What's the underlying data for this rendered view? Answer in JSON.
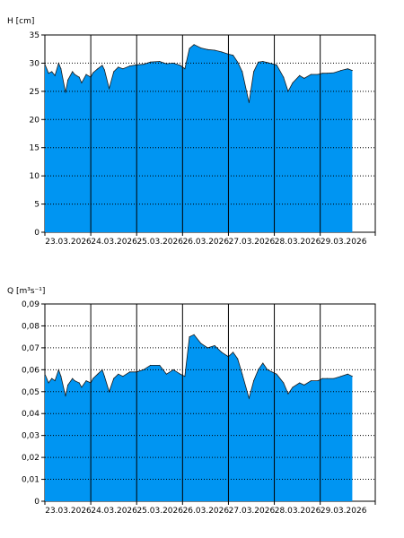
{
  "chart_data": [
    {
      "type": "area",
      "ylabel": "H [cm]",
      "ylim": [
        0,
        35
      ],
      "yticks": [
        "0",
        "5",
        "10",
        "15",
        "20",
        "25",
        "30",
        "35"
      ],
      "x_tick_labels": [
        "23.03.2026",
        "24.03.2026",
        "25.03.2026",
        "26.03.2026",
        "27.03.2026",
        "28.03.2026",
        "29.03.2026"
      ],
      "x_range_days": [
        0,
        7.2
      ],
      "fill_color": "#0095f2",
      "grid": "dotted horizontal at each tick, solid vertical at each day",
      "series": [
        {
          "x_days": [
            0,
            0.08,
            0.15,
            0.22,
            0.3,
            0.35,
            0.45,
            0.5,
            0.6,
            0.65,
            0.75,
            0.8,
            0.9,
            1.0,
            1.05,
            1.15,
            1.25,
            1.3,
            1.4,
            1.5,
            1.6,
            1.7,
            1.85,
            2.0,
            2.15,
            2.3,
            2.5,
            2.65,
            2.8,
            2.95,
            3.05,
            3.15,
            3.25,
            3.4,
            3.55,
            3.7,
            3.85,
            4.0,
            4.1,
            4.2,
            4.3,
            4.45,
            4.55,
            4.65,
            4.75,
            4.85,
            4.95,
            5.05,
            5.2,
            5.3,
            5.4,
            5.55,
            5.65,
            5.8,
            5.95,
            6.05,
            6.15,
            6.3,
            6.45,
            6.6,
            6.7
          ],
          "values": [
            29.8,
            28.2,
            28.5,
            27.8,
            30.0,
            29.0,
            24.8,
            27.0,
            28.5,
            28.0,
            27.5,
            26.5,
            28.0,
            27.5,
            28.3,
            29.0,
            29.6,
            28.8,
            25.5,
            28.5,
            29.3,
            29.0,
            29.5,
            29.7,
            29.8,
            30.2,
            30.3,
            29.9,
            30.0,
            29.6,
            29.0,
            32.6,
            33.3,
            32.7,
            32.4,
            32.3,
            32.0,
            31.6,
            31.4,
            30.2,
            28.5,
            23.0,
            28.5,
            30.2,
            30.3,
            30.1,
            29.9,
            29.7,
            27.5,
            25.0,
            26.5,
            27.8,
            27.3,
            28.0,
            28.0,
            28.2,
            28.2,
            28.3,
            28.7,
            29.0,
            28.7
          ]
        }
      ]
    },
    {
      "type": "area",
      "ylabel": "Q [m³s⁻¹]",
      "ylim": [
        0,
        0.09
      ],
      "yticks": [
        "0",
        "0,01",
        "0,02",
        "0,03",
        "0,04",
        "0,05",
        "0,06",
        "0,07",
        "0,08",
        "0,09"
      ],
      "x_tick_labels": [
        "23.03.2026",
        "24.03.2026",
        "25.03.2026",
        "26.03.2026",
        "27.03.2026",
        "28.03.2026",
        "29.03.2026"
      ],
      "x_range_days": [
        0,
        7.2
      ],
      "fill_color": "#0095f2",
      "grid": "dotted horizontal at each tick, solid vertical at each day",
      "series": [
        {
          "x_days": [
            0,
            0.08,
            0.15,
            0.22,
            0.3,
            0.35,
            0.45,
            0.5,
            0.6,
            0.65,
            0.75,
            0.8,
            0.9,
            1.0,
            1.05,
            1.15,
            1.25,
            1.3,
            1.4,
            1.5,
            1.6,
            1.7,
            1.85,
            2.0,
            2.15,
            2.3,
            2.5,
            2.65,
            2.8,
            2.95,
            3.05,
            3.15,
            3.25,
            3.4,
            3.55,
            3.7,
            3.85,
            4.0,
            4.1,
            4.2,
            4.3,
            4.45,
            4.55,
            4.65,
            4.75,
            4.85,
            4.95,
            5.05,
            5.2,
            5.3,
            5.4,
            5.55,
            5.65,
            5.8,
            5.95,
            6.05,
            6.15,
            6.3,
            6.45,
            6.6,
            6.7
          ],
          "values": [
            0.058,
            0.054,
            0.056,
            0.055,
            0.06,
            0.057,
            0.048,
            0.053,
            0.056,
            0.055,
            0.054,
            0.052,
            0.055,
            0.054,
            0.056,
            0.058,
            0.06,
            0.057,
            0.05,
            0.056,
            0.058,
            0.057,
            0.059,
            0.059,
            0.06,
            0.062,
            0.062,
            0.058,
            0.06,
            0.058,
            0.057,
            0.075,
            0.076,
            0.072,
            0.07,
            0.071,
            0.068,
            0.066,
            0.068,
            0.065,
            0.058,
            0.047,
            0.055,
            0.06,
            0.063,
            0.06,
            0.059,
            0.058,
            0.054,
            0.049,
            0.052,
            0.054,
            0.053,
            0.055,
            0.055,
            0.056,
            0.056,
            0.056,
            0.057,
            0.058,
            0.057
          ]
        }
      ]
    }
  ]
}
